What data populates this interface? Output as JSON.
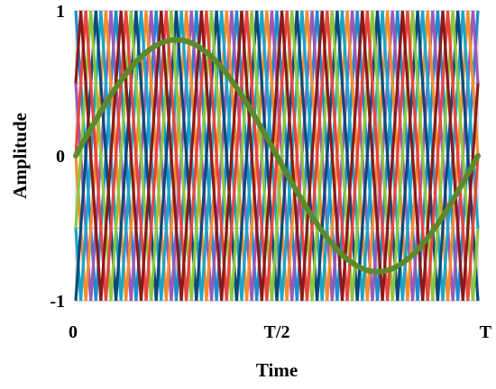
{
  "chart_data": {
    "type": "line",
    "title": "",
    "xlabel": "Time",
    "ylabel": "Amplitude",
    "xlim": [
      0,
      1
    ],
    "ylim": [
      -1,
      1
    ],
    "x_ticks": [
      {
        "value": 0,
        "label": "0"
      },
      {
        "value": 0.5,
        "label": "T/2"
      },
      {
        "value": 1,
        "label": "T"
      }
    ],
    "y_ticks": [
      {
        "value": 1,
        "label": "1"
      },
      {
        "value": 0,
        "label": "0"
      },
      {
        "value": -1,
        "label": "-1"
      }
    ],
    "grid": true,
    "legend": "none",
    "carriers": {
      "waveform": "triangle",
      "count": 8,
      "periods_per_T": 10,
      "amplitude": 1,
      "phase_shift_per_carrier_fraction_of_period": 0.125,
      "series": [
        {
          "color": "#1f8ad0",
          "phase": 0.0
        },
        {
          "color": "#9b59b6",
          "phase": 0.125
        },
        {
          "color": "#f68c2e",
          "phase": 0.25
        },
        {
          "color": "#1ba5c8",
          "phase": 0.375
        },
        {
          "color": "#0d4a7a",
          "phase": 0.5
        },
        {
          "color": "#8dc63f",
          "phase": 0.625
        },
        {
          "color": "#e8453c",
          "phase": 0.75
        },
        {
          "color": "#8b1a1a",
          "phase": 0.875
        }
      ]
    },
    "series": [
      {
        "color": "#5b8a2a",
        "waveform": "sine",
        "amplitude": 0.8,
        "x": [
          0,
          0.05,
          0.1,
          0.15,
          0.2,
          0.25,
          0.3,
          0.35,
          0.4,
          0.45,
          0.5,
          0.55,
          0.6,
          0.65,
          0.7,
          0.75,
          0.8,
          0.85,
          0.9,
          0.95,
          1.0
        ],
        "values": [
          0,
          0.25,
          0.47,
          0.65,
          0.76,
          0.8,
          0.76,
          0.65,
          0.47,
          0.25,
          0,
          -0.25,
          -0.47,
          -0.65,
          -0.76,
          -0.8,
          -0.76,
          -0.65,
          -0.47,
          -0.25,
          0
        ]
      }
    ]
  }
}
